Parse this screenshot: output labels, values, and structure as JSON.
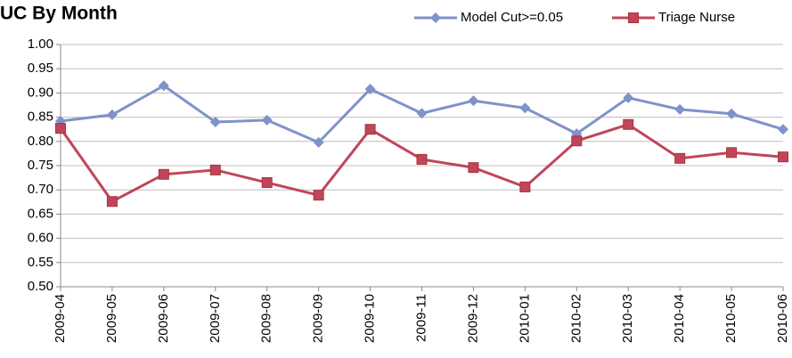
{
  "chart_data": {
    "type": "line",
    "title": "UC By Month",
    "categories": [
      "2009-04",
      "2009-05",
      "2009-06",
      "2009-07",
      "2009-08",
      "2009-09",
      "2009-10",
      "2009-11",
      "2009-12",
      "2010-01",
      "2010-02",
      "2010-03",
      "2010-04",
      "2010-05",
      "2010-06"
    ],
    "series": [
      {
        "name": "Model Cut>=0.05",
        "color": "#7f92c9",
        "marker": "diamond",
        "values": [
          0.842,
          0.855,
          0.915,
          0.84,
          0.844,
          0.798,
          0.908,
          0.858,
          0.884,
          0.869,
          0.816,
          0.89,
          0.866,
          0.857,
          0.825
        ]
      },
      {
        "name": "Triage Nurse",
        "color": "#c0455c",
        "marker": "square",
        "values": [
          0.827,
          0.676,
          0.732,
          0.741,
          0.715,
          0.689,
          0.825,
          0.763,
          0.746,
          0.706,
          0.801,
          0.835,
          0.765,
          0.777,
          0.768
        ]
      }
    ],
    "ylim": [
      0.5,
      1.0
    ],
    "yticks": [
      {
        "value": 0.5,
        "label": "0.50"
      },
      0.55,
      {
        "value": 0.6,
        "label": "0.60"
      },
      0.65,
      {
        "value": 0.7,
        "label": "0.70"
      },
      0.75,
      {
        "value": 0.8,
        "label": "0.80"
      },
      0.85,
      {
        "value": 0.9,
        "label": "0.90"
      },
      0.95,
      {
        "value": 1.0,
        "label": "1.00"
      }
    ],
    "grid": true,
    "legend": "top-right"
  }
}
